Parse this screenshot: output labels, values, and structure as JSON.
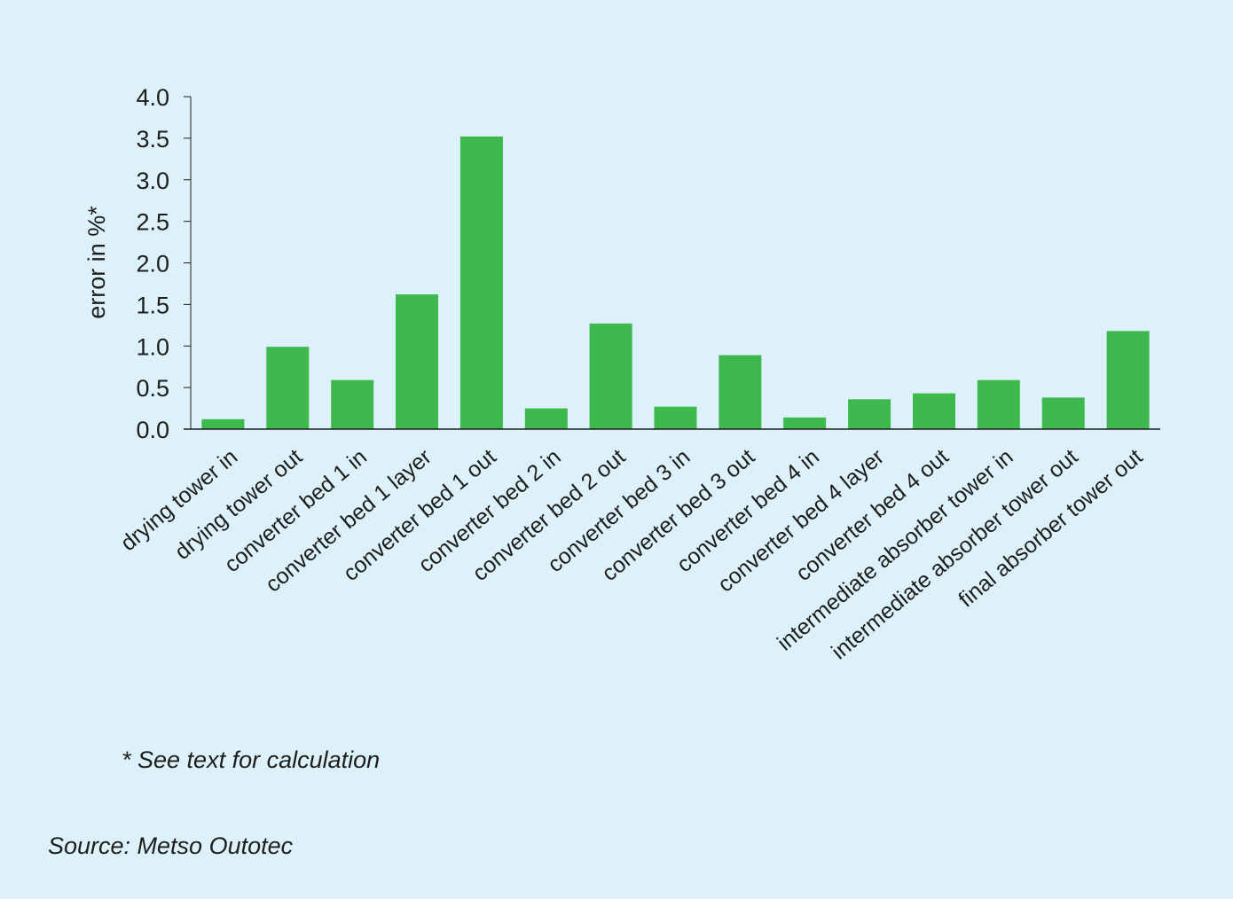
{
  "colors": {
    "background": "#dcf1fa",
    "bar": "#3db94e",
    "axis": "#1d1d1b"
  },
  "footnote": "* See text for calculation",
  "source": "Source: Metso Outotec",
  "chart_data": {
    "type": "bar",
    "title": "",
    "xlabel": "",
    "ylabel": "error in %*",
    "ylim": [
      0,
      4
    ],
    "y_ticks": [
      "0.0",
      "0.5",
      "1.0",
      "1.5",
      "2.0",
      "2.5",
      "3.0",
      "3.5",
      "4.0"
    ],
    "grid": false,
    "categories": [
      "drying tower in",
      "drying tower out",
      "converter bed 1 in",
      "converter bed 1 layer",
      "converter bed 1 out",
      "converter bed 2 in",
      "converter bed 2 out",
      "converter bed 3 in",
      "converter bed 3 out",
      "converter bed 4 in",
      "converter bed 4 layer",
      "converter bed 4 out",
      "intermediate absorber tower in",
      "intermediate absorber tower out",
      "final absorber tower out"
    ],
    "values": [
      0.12,
      0.99,
      0.59,
      1.62,
      3.52,
      0.25,
      1.27,
      0.27,
      0.89,
      0.14,
      0.36,
      0.43,
      0.59,
      0.38,
      1.18
    ]
  }
}
